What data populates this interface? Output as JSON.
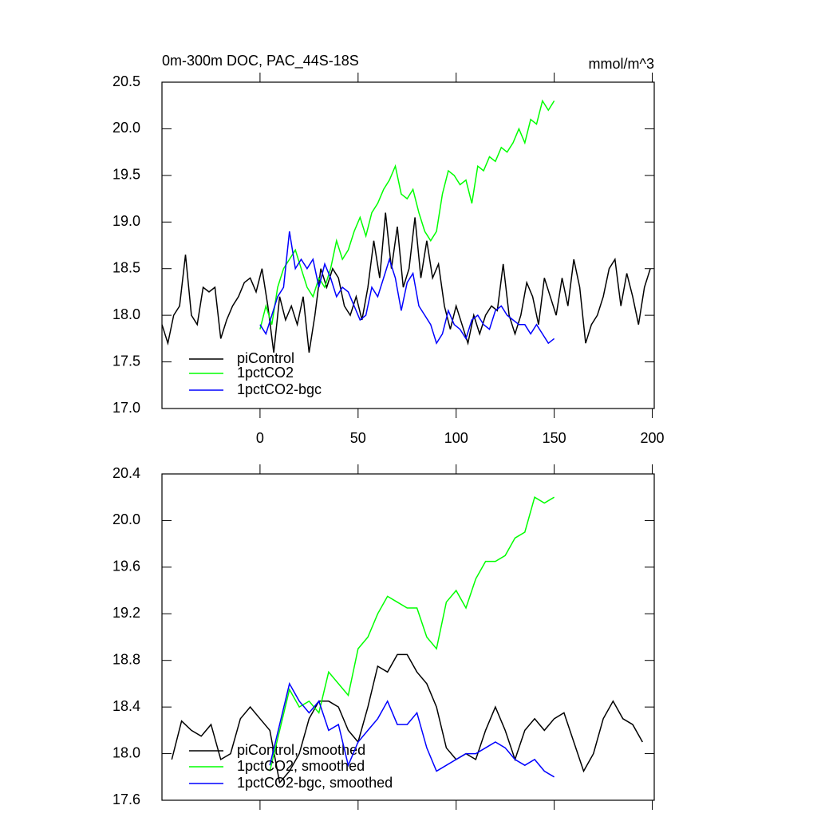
{
  "chart_data": [
    {
      "type": "line",
      "title": "0m-300m DOC, PAC_44S-18S",
      "unit_label": "mmol/m^3",
      "xlim": [
        -50,
        201
      ],
      "xticks": [
        0,
        50,
        100,
        150,
        200
      ],
      "ylim": [
        17,
        20.5
      ],
      "yticks": [
        {
          "value": 17,
          "label": "17.0"
        },
        17.5,
        {
          "value": 18,
          "label": "18.0"
        },
        18.5,
        {
          "value": 19,
          "label": "19.0"
        },
        19.5,
        {
          "value": 20,
          "label": "20.0"
        },
        20.5
      ],
      "series": [
        {
          "name": "piControl",
          "color": "#000000",
          "x": [
            -50,
            -47,
            -44,
            -41,
            -38,
            -35,
            -32,
            -29,
            -26,
            -23,
            -20,
            -17,
            -14,
            -11,
            -8,
            -5,
            -2,
            1,
            4,
            7,
            10,
            13,
            16,
            19,
            22,
            25,
            28,
            31,
            34,
            37,
            40,
            43,
            46,
            49,
            52,
            55,
            58,
            61,
            64,
            67,
            70,
            73,
            76,
            79,
            82,
            85,
            88,
            91,
            94,
            97,
            100,
            103,
            106,
            109,
            112,
            115,
            118,
            121,
            124,
            127,
            130,
            133,
            136,
            139,
            142,
            145,
            148,
            151,
            154,
            157,
            160,
            163,
            166,
            169,
            172,
            175,
            178,
            181,
            184,
            187,
            190,
            193,
            196,
            199
          ],
          "values": [
            17.9,
            17.7,
            18.0,
            18.1,
            18.65,
            18.0,
            17.9,
            18.3,
            18.25,
            18.3,
            17.75,
            17.95,
            18.1,
            18.2,
            18.35,
            18.4,
            18.25,
            18.5,
            18.1,
            17.6,
            18.2,
            17.95,
            18.1,
            17.9,
            18.2,
            17.6,
            18.0,
            18.5,
            18.3,
            18.5,
            18.4,
            18.1,
            18.0,
            18.2,
            17.95,
            18.3,
            18.8,
            18.4,
            19.1,
            18.5,
            18.95,
            18.3,
            18.5,
            19.05,
            18.4,
            18.8,
            18.4,
            18.55,
            18.1,
            17.85,
            18.1,
            17.9,
            17.7,
            18.0,
            17.8,
            18.0,
            18.1,
            18.05,
            18.55,
            18.0,
            17.8,
            18.0,
            18.35,
            18.2,
            17.9,
            18.4,
            18.2,
            18.0,
            18.4,
            18.1,
            18.6,
            18.3,
            17.7,
            17.9,
            18.0,
            18.2,
            18.5,
            18.6,
            18.1,
            18.45,
            18.2,
            17.9,
            18.3,
            18.5
          ]
        },
        {
          "name": "1pctCO2",
          "color": "#00ff00",
          "x": [
            0,
            3,
            6,
            9,
            12,
            15,
            18,
            21,
            24,
            27,
            30,
            33,
            36,
            39,
            42,
            45,
            48,
            51,
            54,
            57,
            60,
            63,
            66,
            69,
            72,
            75,
            78,
            81,
            84,
            87,
            90,
            93,
            96,
            99,
            102,
            105,
            108,
            111,
            114,
            117,
            120,
            123,
            126,
            129,
            132,
            135,
            138,
            141,
            144,
            147,
            150
          ],
          "values": [
            17.85,
            18.1,
            17.9,
            18.3,
            18.5,
            18.6,
            18.7,
            18.5,
            18.3,
            18.2,
            18.4,
            18.3,
            18.5,
            18.8,
            18.6,
            18.7,
            18.9,
            19.05,
            18.85,
            19.1,
            19.2,
            19.35,
            19.45,
            19.6,
            19.3,
            19.25,
            19.35,
            19.1,
            18.9,
            18.8,
            18.9,
            19.3,
            19.55,
            19.5,
            19.4,
            19.45,
            19.2,
            19.6,
            19.55,
            19.7,
            19.65,
            19.8,
            19.75,
            19.85,
            20.0,
            19.85,
            20.1,
            20.05,
            20.3,
            20.2,
            20.3
          ]
        },
        {
          "name": "1pctCO2-bgc",
          "color": "#0000ff",
          "x": [
            0,
            3,
            6,
            9,
            12,
            15,
            18,
            21,
            24,
            27,
            30,
            33,
            36,
            39,
            42,
            45,
            48,
            51,
            54,
            57,
            60,
            63,
            66,
            69,
            72,
            75,
            78,
            81,
            84,
            87,
            90,
            93,
            96,
            99,
            102,
            105,
            108,
            111,
            114,
            117,
            120,
            123,
            126,
            129,
            132,
            135,
            138,
            141,
            144,
            147,
            150
          ],
          "values": [
            17.9,
            17.8,
            18.0,
            18.2,
            18.3,
            18.9,
            18.5,
            18.6,
            18.5,
            18.6,
            18.3,
            18.55,
            18.4,
            18.2,
            18.3,
            18.25,
            18.1,
            17.95,
            18.0,
            18.3,
            18.2,
            18.4,
            18.6,
            18.4,
            18.05,
            18.35,
            18.45,
            18.1,
            18.0,
            17.9,
            17.7,
            17.8,
            18.05,
            17.9,
            17.85,
            17.75,
            17.95,
            18.0,
            17.9,
            17.85,
            18.05,
            18.1,
            18.0,
            17.95,
            17.9,
            17.9,
            17.8,
            17.9,
            17.8,
            17.7,
            17.75
          ]
        }
      ]
    },
    {
      "type": "line",
      "xlim": [
        -50,
        201
      ],
      "xticks": [
        0,
        50,
        100,
        150,
        200
      ],
      "ylim": [
        17.6,
        20.4
      ],
      "yticks": [
        17.6,
        {
          "value": 18,
          "label": "18.0"
        },
        18.4,
        18.8,
        19.2,
        19.6,
        {
          "value": 20,
          "label": "20.0"
        },
        20.4
      ],
      "series": [
        {
          "name": "piControl, smoothed",
          "color": "#000000",
          "x": [
            -45,
            -40,
            -35,
            -30,
            -25,
            -20,
            -15,
            -10,
            -5,
            0,
            5,
            10,
            15,
            20,
            25,
            30,
            35,
            40,
            45,
            50,
            55,
            60,
            65,
            70,
            75,
            80,
            85,
            90,
            95,
            100,
            105,
            110,
            115,
            120,
            125,
            130,
            135,
            140,
            145,
            150,
            155,
            160,
            165,
            170,
            175,
            180,
            185,
            190,
            195
          ],
          "values": [
            17.95,
            18.28,
            18.2,
            18.15,
            18.25,
            17.95,
            18.0,
            18.3,
            18.4,
            18.3,
            18.2,
            17.75,
            17.85,
            18.0,
            18.3,
            18.45,
            18.45,
            18.4,
            18.2,
            18.1,
            18.4,
            18.75,
            18.7,
            18.85,
            18.85,
            18.7,
            18.6,
            18.4,
            18.05,
            17.95,
            18.0,
            17.95,
            18.2,
            18.4,
            18.2,
            17.95,
            18.2,
            18.3,
            18.2,
            18.3,
            18.35,
            18.1,
            17.85,
            18.0,
            18.3,
            18.45,
            18.3,
            18.25,
            18.1
          ]
        },
        {
          "name": "1pctCO2, smoothed",
          "color": "#00ff00",
          "x": [
            5,
            10,
            15,
            20,
            25,
            30,
            35,
            40,
            45,
            50,
            55,
            60,
            65,
            70,
            75,
            80,
            85,
            90,
            95,
            100,
            105,
            110,
            115,
            120,
            125,
            130,
            135,
            140,
            145,
            150
          ],
          "values": [
            17.85,
            18.2,
            18.55,
            18.4,
            18.45,
            18.35,
            18.7,
            18.6,
            18.5,
            18.9,
            19.0,
            19.2,
            19.35,
            19.3,
            19.25,
            19.25,
            19.0,
            18.9,
            19.3,
            19.4,
            19.25,
            19.5,
            19.65,
            19.65,
            19.7,
            19.85,
            19.9,
            20.2,
            20.15,
            20.2
          ]
        },
        {
          "name": "1pctCO2-bgc, smoothed",
          "color": "#0000ff",
          "x": [
            5,
            10,
            15,
            20,
            25,
            30,
            35,
            40,
            45,
            50,
            55,
            60,
            65,
            70,
            75,
            80,
            85,
            90,
            95,
            100,
            105,
            110,
            115,
            120,
            125,
            130,
            135,
            140,
            145,
            150
          ],
          "values": [
            17.9,
            18.25,
            18.6,
            18.45,
            18.35,
            18.45,
            18.2,
            18.25,
            17.9,
            18.1,
            18.2,
            18.3,
            18.45,
            18.25,
            18.25,
            18.35,
            18.05,
            17.85,
            17.9,
            17.95,
            18.0,
            18.0,
            18.05,
            18.1,
            18.05,
            17.95,
            17.9,
            17.95,
            17.85,
            17.8
          ]
        }
      ]
    }
  ]
}
